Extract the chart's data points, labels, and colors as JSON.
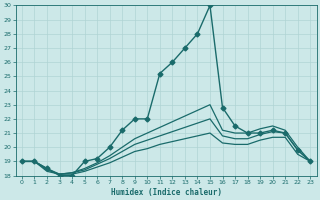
{
  "xlabel": "Humidex (Indice chaleur)",
  "bg_color": "#cce8e8",
  "line_color": "#1a6b6b",
  "grid_color": "#b0d4d4",
  "xlim": [
    -0.5,
    23.5
  ],
  "ylim": [
    18,
    30
  ],
  "xticks": [
    0,
    1,
    2,
    3,
    4,
    5,
    6,
    7,
    8,
    9,
    10,
    11,
    12,
    13,
    14,
    15,
    16,
    17,
    18,
    19,
    20,
    21,
    22,
    23
  ],
  "yticks": [
    18,
    19,
    20,
    21,
    22,
    23,
    24,
    25,
    26,
    27,
    28,
    29,
    30
  ],
  "lines": [
    {
      "x": [
        0,
        1,
        2,
        3,
        4,
        5,
        6,
        7,
        8,
        9,
        10,
        11,
        12,
        13,
        14,
        15,
        16,
        17,
        18,
        19,
        20,
        21,
        22,
        23
      ],
      "y": [
        19,
        19,
        18.5,
        18,
        18,
        19,
        19.2,
        20,
        21.2,
        22,
        22,
        25.2,
        26,
        27,
        28,
        30,
        22.8,
        21.5,
        21,
        21,
        21.2,
        21,
        19.8,
        19
      ],
      "marker": "D",
      "markersize": 2.5,
      "linewidth": 1.0,
      "zorder": 3
    },
    {
      "x": [
        0,
        1,
        2,
        3,
        4,
        5,
        6,
        7,
        8,
        9,
        10,
        11,
        12,
        13,
        14,
        15,
        16,
        17,
        18,
        19,
        20,
        21,
        22,
        23
      ],
      "y": [
        19,
        19,
        18.5,
        18.1,
        18.2,
        18.5,
        18.9,
        19.4,
        20.0,
        20.6,
        21.0,
        21.4,
        21.8,
        22.2,
        22.6,
        23.0,
        21.2,
        21.0,
        21.0,
        21.3,
        21.5,
        21.2,
        20.0,
        19
      ],
      "marker": null,
      "markersize": 0,
      "linewidth": 0.9,
      "zorder": 2
    },
    {
      "x": [
        0,
        1,
        2,
        3,
        4,
        5,
        6,
        7,
        8,
        9,
        10,
        11,
        12,
        13,
        14,
        15,
        16,
        17,
        18,
        19,
        20,
        21,
        22,
        23
      ],
      "y": [
        19,
        19,
        18.4,
        18.1,
        18.2,
        18.4,
        18.8,
        19.2,
        19.7,
        20.2,
        20.5,
        20.8,
        21.1,
        21.4,
        21.7,
        22.0,
        20.8,
        20.6,
        20.6,
        20.9,
        21.1,
        21.0,
        19.8,
        19
      ],
      "marker": null,
      "markersize": 0,
      "linewidth": 0.9,
      "zorder": 2
    },
    {
      "x": [
        0,
        1,
        2,
        3,
        4,
        5,
        6,
        7,
        8,
        9,
        10,
        11,
        12,
        13,
        14,
        15,
        16,
        17,
        18,
        19,
        20,
        21,
        22,
        23
      ],
      "y": [
        19,
        19,
        18.3,
        18.1,
        18.1,
        18.3,
        18.6,
        18.9,
        19.3,
        19.7,
        19.9,
        20.2,
        20.4,
        20.6,
        20.8,
        21.0,
        20.3,
        20.2,
        20.2,
        20.5,
        20.7,
        20.7,
        19.5,
        19
      ],
      "marker": null,
      "markersize": 0,
      "linewidth": 0.9,
      "zorder": 2
    }
  ]
}
